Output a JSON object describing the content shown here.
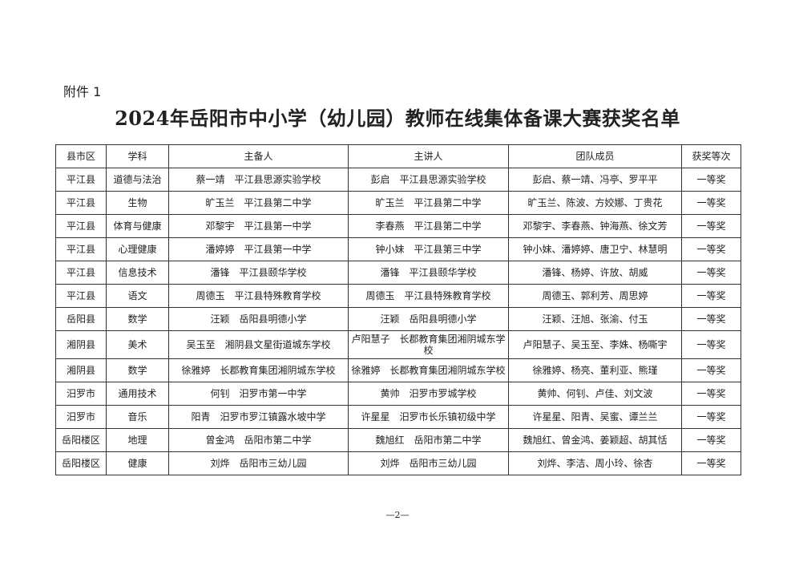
{
  "attachment_label": "附件 1",
  "title": "2024年岳阳市中小学（幼儿园）教师在线集体备课大赛获奖名单",
  "table": {
    "headers": [
      "县市区",
      "学科",
      "主备人",
      "主讲人",
      "团队成员",
      "获奖等次"
    ],
    "rows": [
      [
        "平江县",
        "道德与法治",
        "蔡一靖　平江县思源实验学校",
        "彭启　平江县思源实验学校",
        "彭启、蔡一靖、冯亭、罗平平",
        "一等奖"
      ],
      [
        "平江县",
        "生物",
        "旷玉兰　平江县第二中学",
        "旷玉兰　平江县第二中学",
        "旷玉兰、陈波、方姣娜、丁贵花",
        "一等奖"
      ],
      [
        "平江县",
        "体育与健康",
        "邓黎宇　平江县第一中学",
        "李春燕　平江县第二中学",
        "邓黎宇、李春燕、钟海燕、徐文芳",
        "一等奖"
      ],
      [
        "平江县",
        "心理健康",
        "潘婷婷　平江县第一中学",
        "钟小妹　平江县第三中学",
        "钟小妹、潘婷婷、唐卫宁、林慧明",
        "一等奖"
      ],
      [
        "平江县",
        "信息技术",
        "潘锋　平江县颐华学校",
        "潘锋　平江县颐华学校",
        "潘锋、杨婷、许放、胡威",
        "一等奖"
      ],
      [
        "平江县",
        "语文",
        "周德玉　平江县特殊教育学校",
        "周德玉　平江县特殊教育学校",
        "周德玉、郭利芳、周思婷",
        "一等奖"
      ],
      [
        "岳阳县",
        "数学",
        "汪颖　岳阳县明德小学",
        "汪颖　岳阳县明德小学",
        "汪颖、汪旭、张渝、付玉",
        "一等奖"
      ],
      [
        "湘阴县",
        "美术",
        "吴玉至　湘阴县文星街道城东学校",
        "卢阳慧子　长郡教育集团湘阴城东学校",
        "卢阳慧子、吴玉至、李姝、杨嘶宇",
        "一等奖"
      ],
      [
        "湘阴县",
        "数学",
        "徐雅婷　长郡教育集团湘阴城东学校",
        "徐雅婷　长郡教育集团湘阴城东学校",
        "徐雅婷、杨亮、董利亚、熊瑾",
        "一等奖"
      ],
      [
        "汨罗市",
        "通用技术",
        "何钊　汨罗市第一中学",
        "黄帅　汨罗市罗城学校",
        "黄帅、何钊、卢佳、刘文波",
        "一等奖"
      ],
      [
        "汨罗市",
        "音乐",
        "阳青　汨罗市罗江镇露水坡中学",
        "许星星　汨罗市长乐镇初级中学",
        "许星星、阳青、吴蜜、谭兰兰",
        "一等奖"
      ],
      [
        "岳阳楼区",
        "地理",
        "曾金鸿　岳阳市第二中学",
        "魏旭红　岳阳市第二中学",
        "魏旭红、曾金鸿、姜颖超、胡其恬",
        "一等奖"
      ],
      [
        "岳阳楼区",
        "健康",
        "刘烨　岳阳市三幼儿园",
        "刘烨　岳阳市三幼儿园",
        "刘烨、李洁、周小玲、徐杏",
        "一等奖"
      ]
    ]
  },
  "page_number": "—2—"
}
